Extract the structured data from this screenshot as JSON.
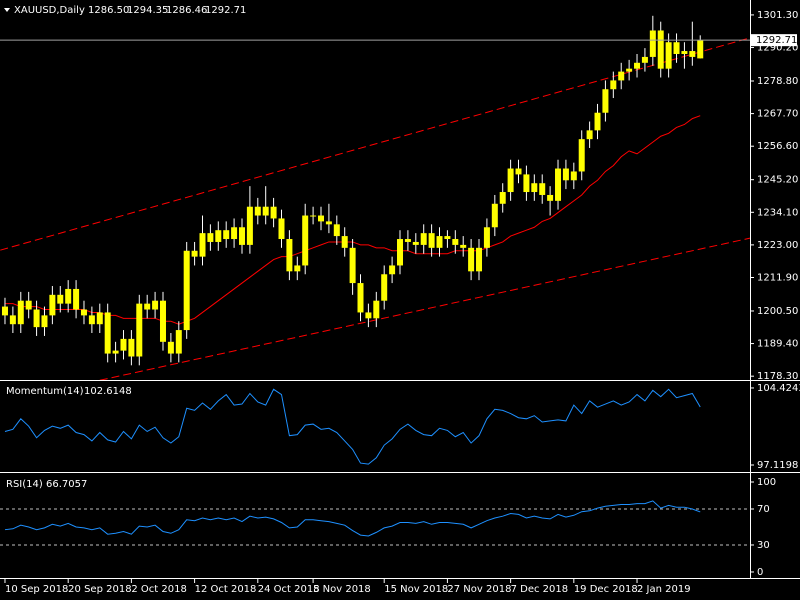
{
  "chart_data": [
    {
      "type": "candlestick",
      "title": "XAUUSD,Daily",
      "ohlc_labels": [
        "1286.50",
        "1294.35",
        "1286.46",
        "1292.71"
      ],
      "color": "#ffff00",
      "wick_color": "#ffffff",
      "ma_color": "#ff0000",
      "open": [
        1202,
        1199,
        1196,
        1204,
        1201,
        1195,
        1199,
        1206,
        1203,
        1208,
        1201,
        1199,
        1196,
        1200,
        1186,
        1187,
        1191,
        1185,
        1203,
        1201,
        1204,
        1190,
        1186,
        1194,
        1221,
        1219,
        1227,
        1224,
        1228,
        1225,
        1229,
        1223,
        1236,
        1233,
        1236,
        1232,
        1225,
        1214,
        1216,
        1233,
        1233,
        1231,
        1230,
        1226,
        1222,
        1210,
        1200,
        1198,
        1204,
        1213,
        1216,
        1225,
        1224,
        1223,
        1227,
        1222,
        1226,
        1225,
        1223,
        1222,
        1214,
        1222,
        1229,
        1237,
        1241,
        1249,
        1247,
        1241,
        1244,
        1240,
        1238,
        1249,
        1245,
        1248,
        1259,
        1262,
        1268,
        1276,
        1279,
        1282,
        1283,
        1285,
        1287,
        1296,
        1283,
        1292,
        1288,
        1289,
        1286.5
      ],
      "high": [
        1205,
        1202,
        1207,
        1207,
        1204,
        1202,
        1209,
        1209,
        1211,
        1211,
        1204,
        1202,
        1203,
        1203,
        1190,
        1194,
        1194,
        1206,
        1206,
        1207,
        1207,
        1193,
        1197,
        1224,
        1224,
        1233,
        1230,
        1231,
        1231,
        1232,
        1232,
        1243,
        1239,
        1243,
        1239,
        1235,
        1228,
        1219,
        1237,
        1236,
        1236,
        1237,
        1233,
        1229,
        1225,
        1213,
        1203,
        1207,
        1216,
        1219,
        1228,
        1228,
        1227,
        1230,
        1230,
        1229,
        1228,
        1228,
        1226,
        1225,
        1225,
        1232,
        1240,
        1244,
        1252,
        1252,
        1250,
        1247,
        1247,
        1243,
        1252,
        1252,
        1251,
        1262,
        1265,
        1271,
        1279,
        1282,
        1285,
        1286,
        1288,
        1290,
        1301,
        1299,
        1295,
        1295,
        1292,
        1299,
        1294.35
      ],
      "low": [
        1196,
        1193,
        1193,
        1198,
        1192,
        1192,
        1196,
        1200,
        1200,
        1198,
        1196,
        1193,
        1193,
        1183,
        1183,
        1184,
        1182,
        1182,
        1198,
        1198,
        1187,
        1183,
        1183,
        1191,
        1216,
        1216,
        1221,
        1221,
        1222,
        1222,
        1220,
        1220,
        1230,
        1230,
        1229,
        1222,
        1211,
        1211,
        1213,
        1230,
        1228,
        1227,
        1223,
        1219,
        1206,
        1197,
        1195,
        1195,
        1201,
        1210,
        1213,
        1221,
        1220,
        1220,
        1219,
        1219,
        1222,
        1220,
        1219,
        1211,
        1211,
        1219,
        1226,
        1234,
        1238,
        1244,
        1238,
        1238,
        1237,
        1233,
        1235,
        1242,
        1242,
        1245,
        1256,
        1259,
        1265,
        1273,
        1276,
        1279,
        1280,
        1282,
        1284,
        1280,
        1280,
        1285,
        1283,
        1284,
        1286.46
      ],
      "close": [
        1199,
        1196,
        1204,
        1201,
        1195,
        1199,
        1206,
        1203,
        1208,
        1201,
        1199,
        1196,
        1200,
        1186,
        1187,
        1191,
        1185,
        1203,
        1201,
        1204,
        1190,
        1186,
        1194,
        1221,
        1219,
        1227,
        1224,
        1228,
        1225,
        1229,
        1223,
        1236,
        1233,
        1236,
        1232,
        1225,
        1214,
        1216,
        1233,
        1233,
        1231,
        1230,
        1226,
        1222,
        1210,
        1200,
        1198,
        1204,
        1213,
        1216,
        1225,
        1224,
        1223,
        1227,
        1222,
        1226,
        1225,
        1223,
        1222,
        1214,
        1222,
        1229,
        1237,
        1241,
        1249,
        1247,
        1241,
        1244,
        1240,
        1238,
        1249,
        1245,
        1248,
        1259,
        1262,
        1268,
        1276,
        1279,
        1282,
        1283,
        1285,
        1287,
        1296,
        1283,
        1292,
        1288,
        1289,
        1287,
        1292.71
      ],
      "ma_values": [
        1203,
        1203,
        1202,
        1202,
        1202,
        1201,
        1201,
        1201,
        1201,
        1201,
        1201,
        1200,
        1200,
        1199,
        1199,
        1198,
        1198,
        1198,
        1198,
        1198,
        1197,
        1197,
        1196,
        1197,
        1198,
        1200,
        1202,
        1204,
        1206,
        1208,
        1210,
        1212,
        1214,
        1216,
        1218,
        1219,
        1219,
        1220,
        1221,
        1222,
        1223,
        1224,
        1224,
        1224,
        1224,
        1223,
        1223,
        1222,
        1222,
        1221,
        1221,
        1221,
        1220,
        1220,
        1220,
        1220,
        1220,
        1221,
        1221,
        1221,
        1221,
        1222,
        1223,
        1224,
        1226,
        1227,
        1228,
        1229,
        1231,
        1232,
        1234,
        1236,
        1238,
        1240,
        1243,
        1245,
        1248,
        1250,
        1253,
        1255,
        1254,
        1256,
        1258,
        1260,
        1261,
        1263,
        1264,
        1266,
        1267
      ],
      "trendlines": [
        {
          "start": [
            -0.6,
            1221.2
          ],
          "end": [
            94.3,
            1293.5
          ],
          "color": "#ff0000"
        },
        {
          "start": [
            12.0,
            1176.9
          ],
          "end": [
            94.3,
            1225.3
          ],
          "color": "#ff0000"
        }
      ],
      "price_line_color": "#a0a0a0",
      "xlim": [
        -0.63,
        94.3
      ],
      "xticks": [
        {
          "value": 0,
          "label": "10 Sep 2018"
        },
        {
          "value": 8,
          "label": "20 Sep 2018"
        },
        {
          "value": 16,
          "label": "2 Oct 2018"
        },
        {
          "value": 24,
          "label": "12 Oct 2018"
        },
        {
          "value": 32,
          "label": "24 Oct 2018"
        },
        {
          "value": 39,
          "label": "5 Nov 2018"
        },
        {
          "value": 48,
          "label": "15 Nov 2018"
        },
        {
          "value": 56,
          "label": "27 Nov 2018"
        },
        {
          "value": 64,
          "label": "7 Dec 2018"
        },
        {
          "value": 72,
          "label": "19 Dec 2018"
        },
        {
          "value": 80,
          "label": "2 Jan 2019"
        }
      ],
      "ylim": [
        1177,
        1305.7
      ],
      "yticks": [
        {
          "value": 1301.3,
          "label": "1301.30"
        },
        {
          "value": 1290.2,
          "label": "1290.20"
        },
        {
          "value": 1278.8,
          "label": "1278.80"
        },
        {
          "value": 1267.7,
          "label": "1267.70"
        },
        {
          "value": 1256.6,
          "label": "1256.60"
        },
        {
          "value": 1245.2,
          "label": "1245.20"
        },
        {
          "value": 1234.1,
          "label": "1234.10"
        },
        {
          "value": 1223,
          "label": "1223.00"
        },
        {
          "value": 1211.9,
          "label": "1211.90"
        },
        {
          "value": 1200.5,
          "label": "1200.50"
        },
        {
          "value": 1189.4,
          "label": "1189.40"
        },
        {
          "value": 1178.3,
          "label": "1178.30"
        }
      ]
    },
    {
      "type": "line",
      "title": "Momentum(14)",
      "color": "#1e90ff",
      "values": [
        100.3,
        100.5,
        101.5,
        100.8,
        99.7,
        100.4,
        100.8,
        100.6,
        100.9,
        100.2,
        100.0,
        99.4,
        100.2,
        99.5,
        99.3,
        100.3,
        99.6,
        100.9,
        100.3,
        100.7,
        99.7,
        99.2,
        99.8,
        102.5,
        102.3,
        103.0,
        102.4,
        103.2,
        103.8,
        102.8,
        102.9,
        103.9,
        103.1,
        102.8,
        104.3,
        103.8,
        99.9,
        100.0,
        100.9,
        101.0,
        100.5,
        100.6,
        100.2,
        99.4,
        98.6,
        97.3,
        97.2,
        97.8,
        99.0,
        99.6,
        100.5,
        101.0,
        100.4,
        100.0,
        99.9,
        100.6,
        100.4,
        99.8,
        100.2,
        99.2,
        99.9,
        101.5,
        102.4,
        102.3,
        102.0,
        101.6,
        101.5,
        101.8,
        101.2,
        101.3,
        101.4,
        101.3,
        102.8,
        102.0,
        103.2,
        102.6,
        102.9,
        103.2,
        102.8,
        103.1,
        103.8,
        103.2,
        104.2,
        103.6,
        104.3,
        103.5,
        103.7,
        103.9,
        102.6148
      ],
      "ylim": [
        96.55,
        104.99
      ],
      "yticks": [
        104.4243,
        97.1198
      ]
    },
    {
      "type": "line",
      "title": "RSI(14)",
      "color": "#1e90ff",
      "level_color": "#c0c0c0",
      "values": [
        47,
        48,
        52,
        50,
        47,
        49,
        53,
        51,
        54,
        50,
        49,
        47,
        49,
        42,
        43,
        45,
        42,
        51,
        50,
        52,
        45,
        43,
        47,
        58,
        57,
        60,
        58,
        60,
        58,
        60,
        56,
        62,
        60,
        61,
        59,
        55,
        49,
        50,
        58,
        58,
        57,
        56,
        54,
        52,
        46,
        41,
        40,
        44,
        49,
        51,
        55,
        55,
        54,
        56,
        53,
        55,
        55,
        54,
        53,
        49,
        53,
        57,
        60,
        62,
        65,
        64,
        60,
        62,
        60,
        59,
        64,
        61,
        63,
        67,
        68,
        71,
        73,
        74,
        75,
        75,
        76,
        76,
        79,
        71,
        74,
        72,
        72,
        70,
        66.7057
      ],
      "ylim": [
        -6.7,
        108.9
      ],
      "yticks": [
        100,
        70,
        30,
        0
      ],
      "levels": [
        70,
        30
      ]
    }
  ]
}
